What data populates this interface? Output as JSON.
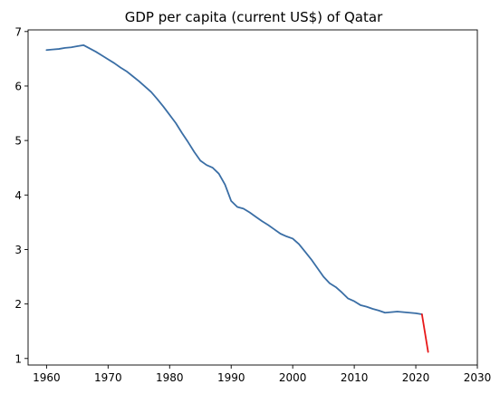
{
  "chart_data": {
    "type": "line",
    "title": "GDP per capita (current US$) of Qatar",
    "xlabel": "",
    "ylabel": "",
    "xlim": [
      1957,
      2030
    ],
    "ylim": [
      0.88,
      7.03
    ],
    "xticks": [
      1960,
      1970,
      1980,
      1990,
      2000,
      2010,
      2020,
      2030
    ],
    "yticks": [
      1,
      2,
      3,
      4,
      5,
      6,
      7
    ],
    "grid": false,
    "legend": "none",
    "series": [
      {
        "color": "#3a6ea5",
        "x": [
          1960,
          1961,
          1962,
          1963,
          1964,
          1965,
          1966,
          1967,
          1968,
          1969,
          1970,
          1971,
          1972,
          1973,
          1974,
          1975,
          1976,
          1977,
          1978,
          1979,
          1980,
          1981,
          1982,
          1983,
          1984,
          1985,
          1986,
          1987,
          1988,
          1989,
          1990,
          1991,
          1992,
          1993,
          1994,
          1995,
          1996,
          1997,
          1998,
          1999,
          2000,
          2001,
          2002,
          2003,
          2004,
          2005,
          2006,
          2007,
          2008,
          2009,
          2010,
          2011,
          2012,
          2013,
          2014,
          2015,
          2016,
          2017,
          2018,
          2019,
          2020,
          2021
        ],
        "y": [
          6.66,
          6.67,
          6.68,
          6.7,
          6.71,
          6.73,
          6.75,
          6.69,
          6.63,
          6.56,
          6.49,
          6.42,
          6.34,
          6.27,
          6.18,
          6.09,
          5.99,
          5.89,
          5.76,
          5.62,
          5.47,
          5.32,
          5.14,
          4.97,
          4.79,
          4.63,
          4.55,
          4.5,
          4.39,
          4.19,
          3.89,
          3.78,
          3.75,
          3.68,
          3.6,
          3.52,
          3.45,
          3.37,
          3.29,
          3.24,
          3.2,
          3.1,
          2.96,
          2.82,
          2.66,
          2.5,
          2.38,
          2.31,
          2.21,
          2.1,
          2.05,
          1.98,
          1.95,
          1.91,
          1.88,
          1.84,
          1.85,
          1.86,
          1.85,
          1.84,
          1.83,
          1.81
        ]
      },
      {
        "color": "#e8191a",
        "x": [
          2021,
          2022
        ],
        "y": [
          1.81,
          1.12
        ]
      }
    ]
  }
}
